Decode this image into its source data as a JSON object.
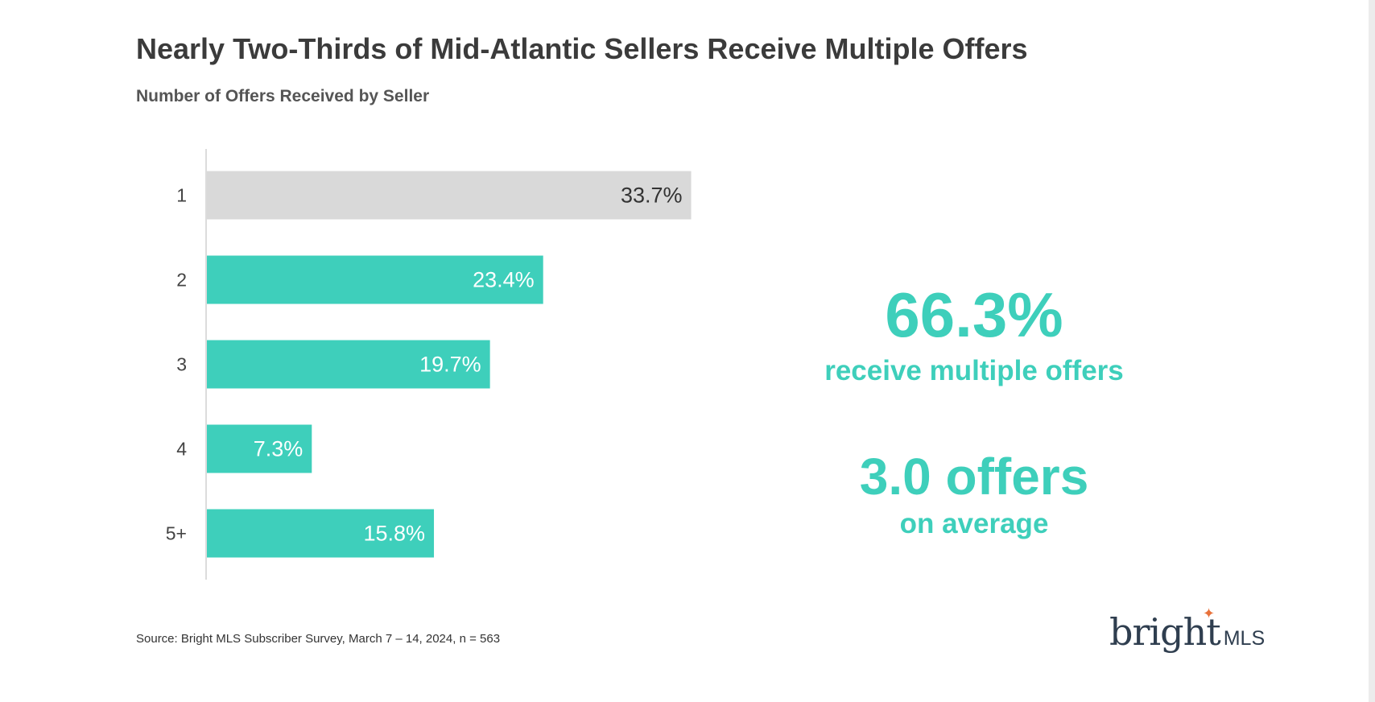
{
  "title": "Nearly Two-Thirds of Mid-Atlantic Sellers Receive Multiple Offers",
  "subtitle": "Number of Offers Received by Seller",
  "callouts": {
    "multiple_value": "66.3%",
    "multiple_label": "receive multiple offers",
    "average_value": "3.0 offers",
    "average_label": "on average"
  },
  "source": "Source: Bright MLS Subscriber Survey, March 7 – 14, 2024, n = 563",
  "logo": {
    "brand": "bright",
    "suffix": "MLS",
    "spark_icon": "four-point-star-icon"
  },
  "colors": {
    "highlight_bar": "#3ecfbb",
    "neutral_bar": "#d9d9d9",
    "highlight_label": "#ffffff",
    "neutral_label": "#333333",
    "callout": "#3ecfbb"
  },
  "chart_data": {
    "type": "bar",
    "orientation": "horizontal",
    "title": "Number of Offers Received by Seller",
    "categories": [
      "1",
      "2",
      "3",
      "4",
      "5+"
    ],
    "values": [
      33.7,
      23.4,
      19.7,
      7.3,
      15.8
    ],
    "labels": [
      "33.7%",
      "23.4%",
      "19.7%",
      "7.3%",
      "15.8%"
    ],
    "highlight": [
      false,
      true,
      true,
      true,
      true
    ],
    "xlabel": "",
    "ylabel": "",
    "xlim": [
      0,
      40
    ],
    "grid": false,
    "legend": "none"
  }
}
